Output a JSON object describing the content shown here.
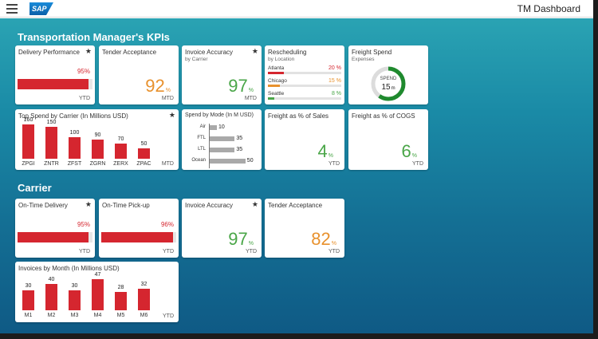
{
  "header": {
    "logo": "SAP",
    "title": "TM Dashboard"
  },
  "sections": {
    "kpis": "Transportation Manager's KPIs",
    "carrier": "Carrier"
  },
  "tiles": {
    "delivery_performance": {
      "title": "Delivery Performance",
      "value": "95",
      "pct": "%",
      "unit": "YTD",
      "progress": 95
    },
    "tender_acceptance": {
      "title": "Tender Acceptance",
      "value": "92",
      "pct": "%",
      "unit": "MTD"
    },
    "invoice_accuracy": {
      "title": "Invoice Accuracy",
      "subtitle": "by Carrier",
      "value": "97",
      "pct": "%",
      "unit": "MTD"
    },
    "rescheduling": {
      "title": "Rescheduling",
      "subtitle": "by Location",
      "rows": [
        {
          "label": "Atlanta",
          "value": "20 %",
          "pct": 20,
          "color": "#d5262f"
        },
        {
          "label": "Chicago",
          "value": "15 %",
          "pct": 15,
          "color": "#e8912d"
        },
        {
          "label": "Seattle",
          "value": "8 %",
          "pct": 8,
          "color": "#4aa648"
        }
      ]
    },
    "freight_spend": {
      "title": "Freight Spend",
      "subtitle": "Expenses",
      "ring_label": "SPEND",
      "ring_value": "15",
      "ring_unit": "m",
      "ring_fraction": 0.6
    },
    "top_spend": {
      "title": "Top Spend by Carrier (In Millions USD)",
      "unit": "MTD"
    },
    "spend_by_mode": {
      "title": "Spend by Mode (In M USD)"
    },
    "freight_sales": {
      "title": "Freight as % of Sales",
      "value": "4",
      "pct": "%",
      "unit": "YTD"
    },
    "freight_cogs": {
      "title": "Freight as % of COGS",
      "value": "6",
      "pct": "%",
      "unit": "YTD"
    },
    "otd": {
      "title": "On-Time Delivery",
      "value": "95",
      "pct": "%",
      "unit": "YTD",
      "progress": 95
    },
    "otp": {
      "title": "On-Time Pick-up",
      "value": "96",
      "pct": "%",
      "unit": "YTD",
      "progress": 96
    },
    "carrier_invoice_accuracy": {
      "title": "Invoice Accuracy",
      "value": "97",
      "pct": "%",
      "unit": "YTD"
    },
    "carrier_tender_acceptance": {
      "title": "Tender Acceptance",
      "value": "82",
      "pct": "%",
      "unit": "YTD"
    },
    "invoices_by_month": {
      "title": "Invoices by Month (In Millions USD)",
      "unit": "YTD"
    }
  },
  "star": "★",
  "chart_data": [
    {
      "type": "bar",
      "title": "Top Spend by Carrier (In Millions USD)",
      "categories": [
        "ZPGI",
        "ZNTR",
        "ZFST",
        "ZGRN",
        "ZERX",
        "ZPAC"
      ],
      "values": [
        160,
        150,
        100,
        90,
        70,
        50
      ],
      "ylim": [
        0,
        160
      ],
      "color": "#d5262f"
    },
    {
      "type": "bar",
      "orientation": "horizontal",
      "title": "Spend by Mode (In M USD)",
      "categories": [
        "Air",
        "FTL",
        "LTL",
        "Ocean"
      ],
      "values": [
        10,
        35,
        35,
        50
      ],
      "xlim": [
        0,
        50
      ],
      "color": "#a9a9a9"
    },
    {
      "type": "bar",
      "title": "Invoices by Month (In Millions USD)",
      "categories": [
        "M1",
        "M2",
        "M3",
        "M4",
        "M5",
        "M6"
      ],
      "values": [
        30,
        40,
        30,
        47,
        28,
        32
      ],
      "ylim": [
        0,
        47
      ],
      "color": "#d5262f"
    }
  ]
}
